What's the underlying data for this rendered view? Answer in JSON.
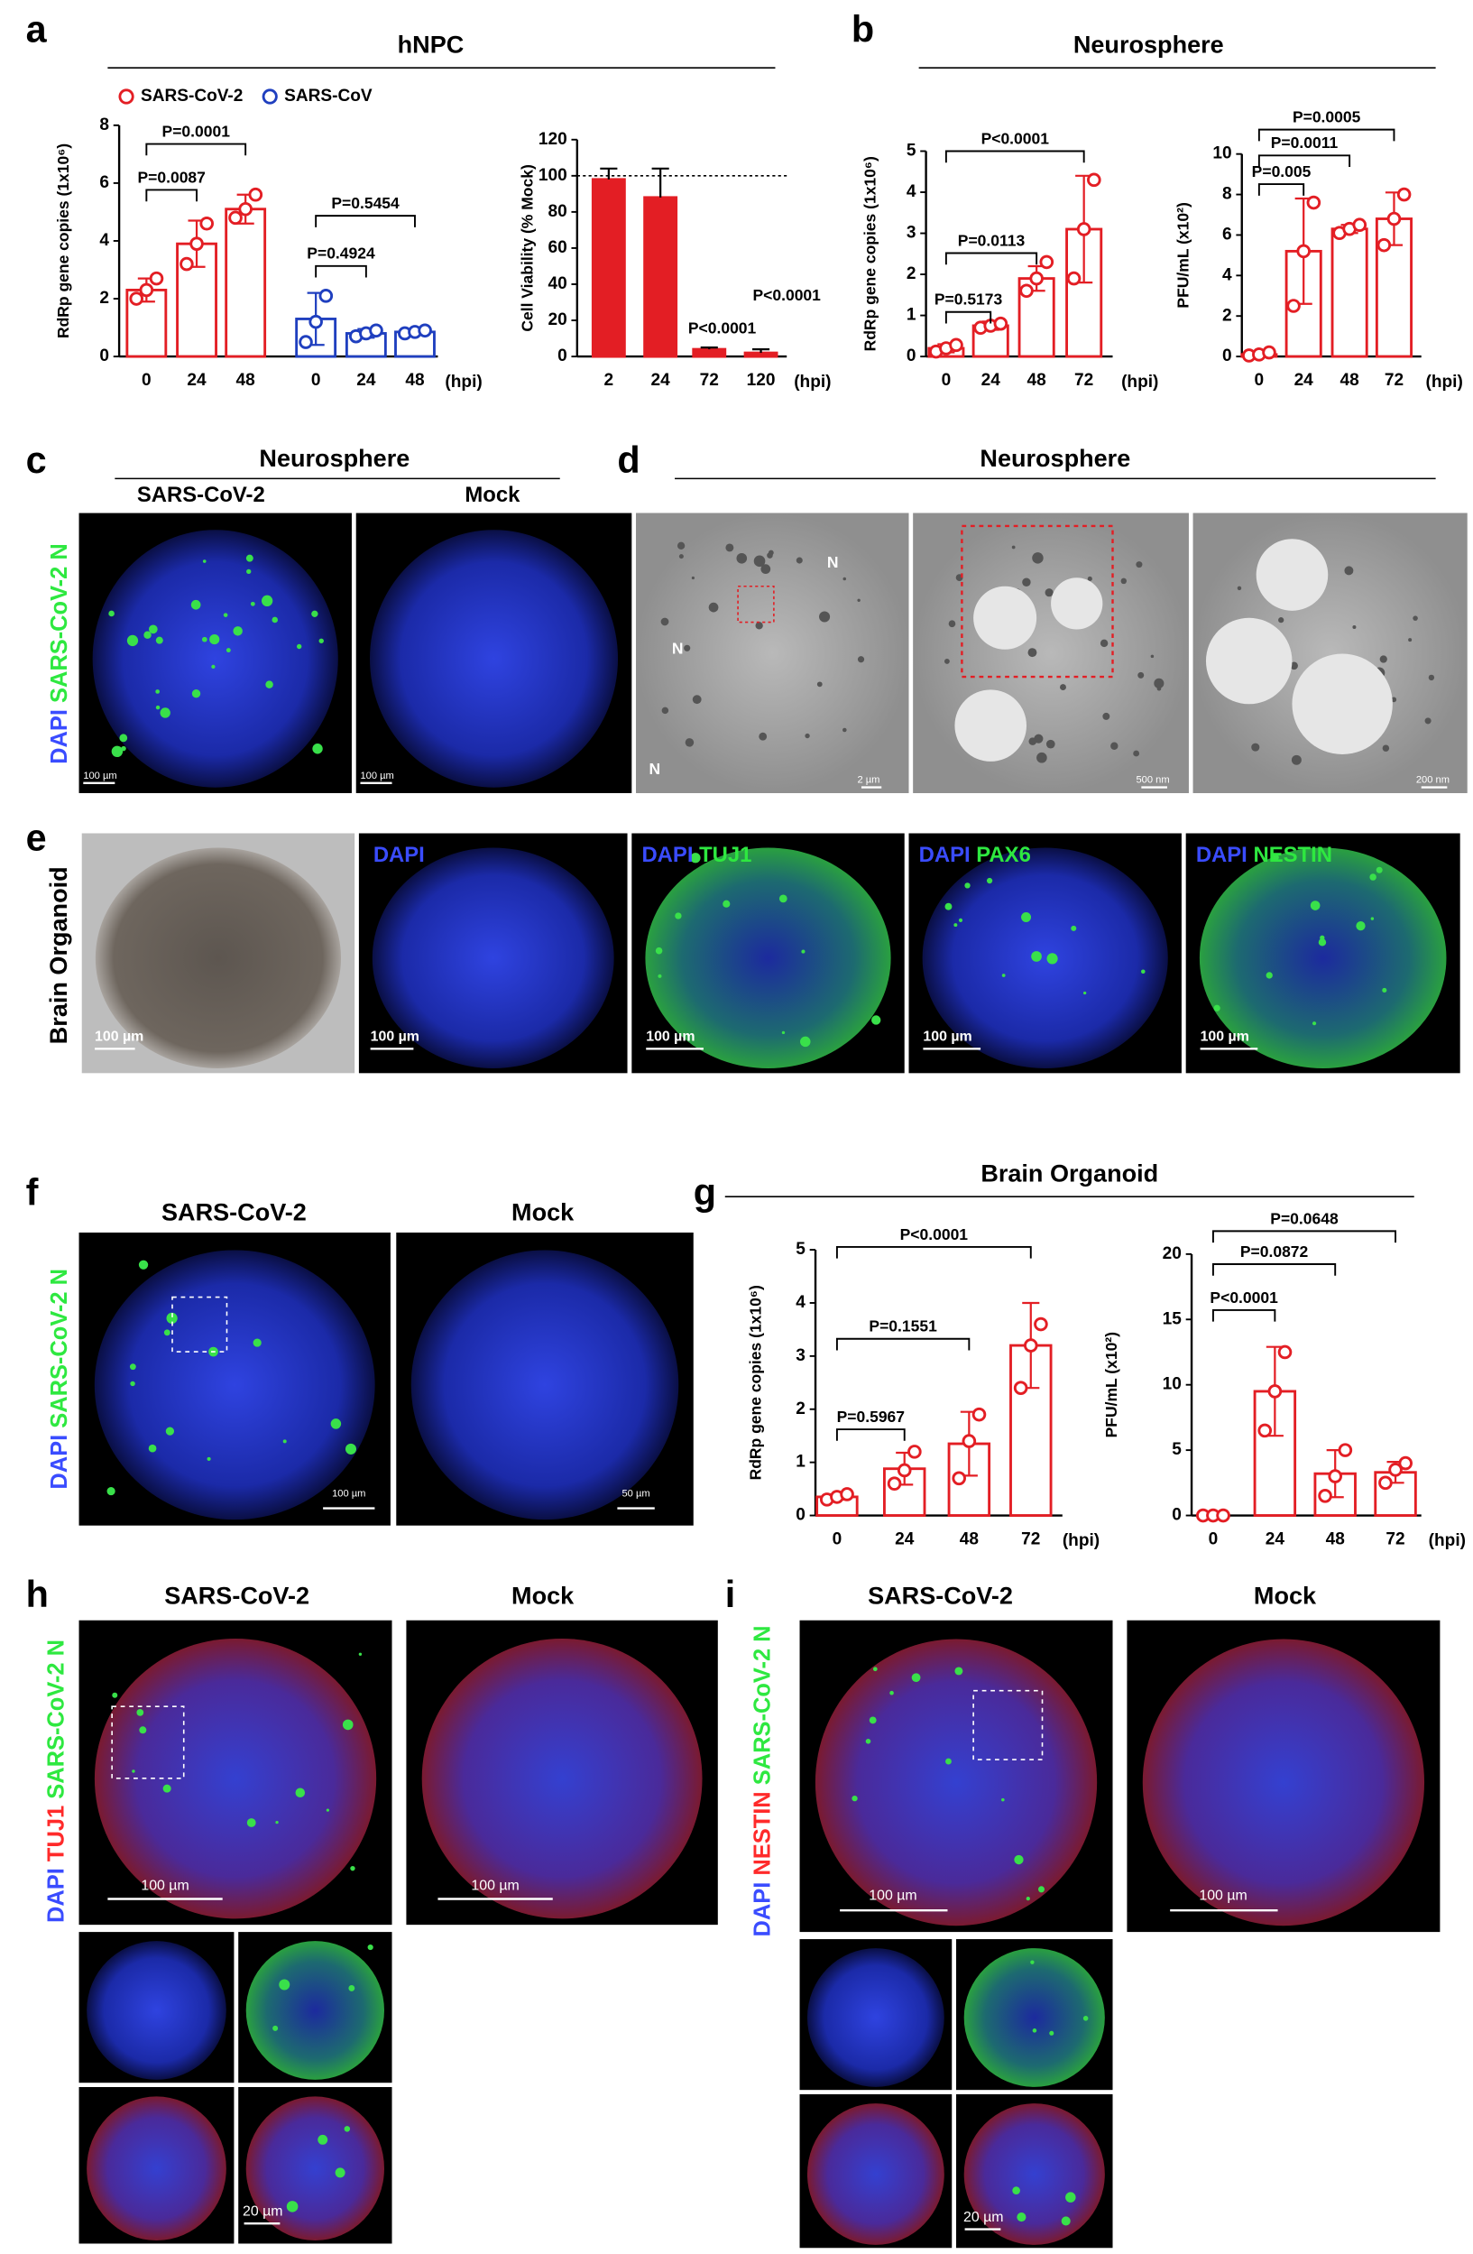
{
  "figure": {
    "a": {
      "letter": "a",
      "title": "hNPC"
    },
    "b": {
      "letter": "b",
      "title": "Neurosphere"
    },
    "c": {
      "letter": "c",
      "title": "Neurosphere",
      "columns": [
        "SARS-CoV-2",
        "Mock"
      ],
      "side_label": [
        "DAPI",
        "SARS-CoV-2 N"
      ],
      "scale_bars": [
        "100 µm",
        "100 µm"
      ]
    },
    "d": {
      "letter": "d",
      "title": "Neurosphere",
      "nucleus_labels": [
        "N",
        "N",
        "N"
      ],
      "scale_bars": [
        "2 µm",
        "500 nm",
        "200 nm"
      ]
    },
    "e": {
      "letter": "e",
      "side_label": "Brain Organoid",
      "stains": [
        [
          "DAPI"
        ],
        [
          "DAPI",
          "TUJ1"
        ],
        [
          "DAPI",
          "PAX6"
        ],
        [
          "DAPI",
          "NESTIN"
        ]
      ],
      "scale_bars": [
        "100 µm",
        "100 µm",
        "100 µm",
        "100 µm",
        "100 µm"
      ]
    },
    "f": {
      "letter": "f",
      "columns": [
        "SARS-CoV-2",
        "Mock"
      ],
      "side_label": [
        "DAPI",
        "SARS-CoV-2 N"
      ],
      "scale_bars": [
        "100 µm",
        "50 µm"
      ]
    },
    "g": {
      "letter": "g",
      "title": "Brain Organoid"
    },
    "h": {
      "letter": "h",
      "columns": [
        "SARS-CoV-2",
        "Mock"
      ],
      "side_label": [
        "DAPI",
        "TUJ1",
        "SARS-CoV-2 N"
      ],
      "scale_bars": [
        "100 µm",
        "100 µm",
        "20 µm"
      ]
    },
    "i": {
      "letter": "i",
      "columns": [
        "SARS-CoV-2",
        "Mock"
      ],
      "side_label": [
        "DAPI",
        "NESTIN",
        "SARS-CoV-2 N"
      ],
      "scale_bars": [
        "100 µm",
        "100 µm",
        "20 µm"
      ]
    }
  },
  "chart_data": [
    {
      "type": "bar",
      "y_label": "RdRp gene copies (1x10⁶)",
      "x_unit": "(hpi)",
      "legend": true,
      "categories": [
        "0",
        "24",
        "48",
        "0",
        "24",
        "48"
      ],
      "series": [
        {
          "name": "SARS-CoV-2",
          "color": "#e31e24",
          "values": [
            2.3,
            3.9,
            5.1,
            null,
            null,
            null
          ],
          "errors": [
            0.4,
            0.8,
            0.5,
            null,
            null,
            null
          ],
          "points": [
            [
              2.0,
              2.3,
              2.7
            ],
            [
              3.2,
              3.9,
              4.6
            ],
            [
              4.8,
              5.1,
              5.6
            ],
            null,
            null,
            null
          ]
        },
        {
          "name": "SARS-CoV",
          "color": "#1f3fbf",
          "values": [
            null,
            null,
            null,
            1.3,
            0.8,
            0.85
          ],
          "errors": [
            null,
            null,
            null,
            0.9,
            0.15,
            0.1
          ],
          "points": [
            null,
            null,
            null,
            [
              0.5,
              1.2,
              2.1
            ],
            [
              0.7,
              0.8,
              0.9
            ],
            [
              0.8,
              0.85,
              0.9
            ]
          ]
        }
      ],
      "ylim": [
        0,
        8
      ],
      "yticks": [
        0,
        2,
        4,
        6,
        8
      ],
      "annotations": [
        "P=0.0087",
        "P=0.0001",
        "P=0.4924",
        "P=0.5454"
      ]
    },
    {
      "type": "bar",
      "y_label": "Cell Viability (% Mock)",
      "x_unit": "(hpi)",
      "filled": true,
      "color": "#e31e24",
      "categories": [
        "2",
        "24",
        "72",
        "120"
      ],
      "values": [
        98,
        88,
        4,
        2
      ],
      "errors": [
        6,
        16,
        1,
        2
      ],
      "ylim": [
        0,
        120
      ],
      "yticks": [
        0,
        20,
        40,
        60,
        80,
        100,
        120
      ],
      "reference_line": 100,
      "annotations": [
        "P<0.0001",
        "P<0.0001"
      ]
    },
    {
      "type": "bar",
      "y_label": "RdRp gene copies (1x10⁶)",
      "x_unit": "(hpi)",
      "color": "#e31e24",
      "categories": [
        "0",
        "24",
        "48",
        "72"
      ],
      "values": [
        0.2,
        0.75,
        1.9,
        3.1
      ],
      "errors": [
        0.1,
        0.1,
        0.3,
        1.3
      ],
      "points": [
        [
          0.12,
          0.2,
          0.28
        ],
        [
          0.7,
          0.75,
          0.8
        ],
        [
          1.6,
          1.9,
          2.3
        ],
        [
          1.9,
          3.1,
          4.3
        ]
      ],
      "ylim": [
        0,
        5
      ],
      "yticks": [
        0,
        1,
        2,
        3,
        4,
        5
      ],
      "annotations": [
        "P=0.5173",
        "P=0.0113",
        "P<0.0001"
      ]
    },
    {
      "type": "bar",
      "y_label": "PFU/mL (x10²)",
      "x_unit": "(hpi)",
      "color": "#e31e24",
      "categories": [
        "0",
        "24",
        "48",
        "72"
      ],
      "values": [
        0.1,
        5.2,
        6.3,
        6.8
      ],
      "errors": [
        0.1,
        2.6,
        0.2,
        1.3
      ],
      "points": [
        [
          0.05,
          0.1,
          0.2
        ],
        [
          2.5,
          5.2,
          7.6
        ],
        [
          6.1,
          6.3,
          6.5
        ],
        [
          5.5,
          6.8,
          8.0
        ]
      ],
      "ylim": [
        0,
        10
      ],
      "yticks": [
        0,
        2,
        4,
        6,
        8,
        10
      ],
      "annotations": [
        "P=0.005",
        "P=0.0011",
        "P=0.0005"
      ]
    },
    {
      "type": "bar",
      "y_label": "RdRp gene copies (1x10⁶)",
      "x_unit": "(hpi)",
      "color": "#e31e24",
      "categories": [
        "0",
        "24",
        "48",
        "72"
      ],
      "values": [
        0.35,
        0.88,
        1.35,
        3.2
      ],
      "errors": [
        0.05,
        0.3,
        0.6,
        0.8
      ],
      "points": [
        [
          0.3,
          0.35,
          0.4
        ],
        [
          0.6,
          0.85,
          1.2
        ],
        [
          0.7,
          1.4,
          1.9
        ],
        [
          2.4,
          3.2,
          3.6
        ]
      ],
      "ylim": [
        0,
        5
      ],
      "yticks": [
        0,
        1,
        2,
        3,
        4,
        5
      ],
      "annotations": [
        "P=0.5967",
        "P=0.1551",
        "P<0.0001"
      ]
    },
    {
      "type": "bar",
      "y_label": "PFU/mL (x10²)",
      "x_unit": "(hpi)",
      "color": "#e31e24",
      "categories": [
        "0",
        "24",
        "48",
        "72"
      ],
      "values": [
        0,
        9.5,
        3.2,
        3.3
      ],
      "errors": [
        0,
        3.4,
        1.8,
        0.8
      ],
      "points": [
        [
          0,
          0,
          0
        ],
        [
          6.5,
          9.5,
          12.5
        ],
        [
          1.5,
          3.0,
          5.0
        ],
        [
          2.5,
          3.5,
          4.0
        ]
      ],
      "ylim": [
        0,
        20
      ],
      "yticks": [
        0,
        5,
        10,
        15,
        20
      ],
      "annotations": [
        "P<0.0001",
        "P=0.0872",
        "P=0.0648"
      ]
    }
  ]
}
